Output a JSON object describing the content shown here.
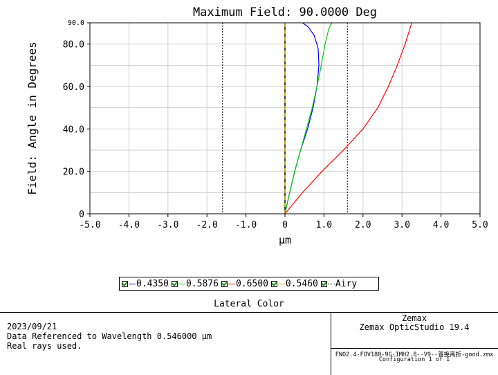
{
  "chart_data": {
    "type": "line",
    "title": "Maximum Field: 90.0000 Deg",
    "xlabel": "µm",
    "ylabel": "Field: Angle in Degrees",
    "xlim": [
      -5.0,
      5.0
    ],
    "ylim": [
      0,
      90
    ],
    "x_ticks": [
      -5,
      -4,
      -3,
      -2,
      -1,
      0,
      1,
      2,
      3,
      4,
      5
    ],
    "x_tick_labels": [
      "-5.0",
      "-4.0",
      "-3.0",
      "-2.0",
      "-1.0",
      "0",
      "1.0",
      "2.0",
      "3.0",
      "4.0",
      "5.0"
    ],
    "y_ticks": [
      0,
      20,
      40,
      60,
      80,
      90
    ],
    "y_tick_labels": [
      "0",
      "20.0",
      "40.0",
      "60.0",
      "80.0",
      "90.0"
    ],
    "grid": true,
    "airy_radius": 1.6,
    "series": [
      {
        "name": "0.4350",
        "color": "#0000ff",
        "x": [
          0,
          0.12,
          0.25,
          0.4,
          0.58,
          0.72,
          0.82,
          0.87,
          0.85,
          0.75,
          0.6,
          0.45
        ],
        "y": [
          0,
          10,
          20,
          30,
          40,
          50,
          60,
          70,
          78,
          84,
          88,
          90
        ]
      },
      {
        "name": "0.5876",
        "color": "#00cc00",
        "x": [
          0,
          0.12,
          0.25,
          0.4,
          0.55,
          0.7,
          0.82,
          0.93,
          1.03,
          1.12,
          1.2
        ],
        "y": [
          0,
          10,
          20,
          30,
          40,
          50,
          60,
          70,
          80,
          87,
          90
        ]
      },
      {
        "name": "0.6500",
        "color": "#ff0000",
        "x": [
          0,
          0.45,
          0.95,
          1.5,
          2.0,
          2.38,
          2.65,
          2.88,
          3.08,
          3.25
        ],
        "y": [
          0,
          10,
          20,
          30,
          40,
          50,
          60,
          70,
          80,
          90
        ]
      },
      {
        "name": "0.5460",
        "color": "#c8b400",
        "x": [
          0,
          0
        ],
        "y": [
          0,
          90
        ]
      },
      {
        "name": "Airy",
        "color": "#000000",
        "dotted": true
      }
    ]
  },
  "footer": {
    "title": "Lateral Color",
    "date": "2023/09/21",
    "reference_line": "Data Referenced to Wavelength 0.546000 µm",
    "rays_line": "Real rays used.",
    "company": "Zemax",
    "product": "Zemax OpticStudio 19.4",
    "filename": "FNO2.4-FOV180-9G-IMH2.8--V9--普换离折-good.zmx",
    "configuration": "Configuration 1 of 1"
  }
}
